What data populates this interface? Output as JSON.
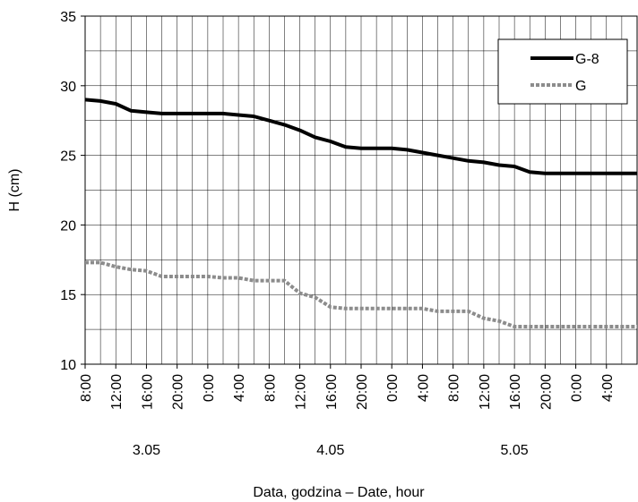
{
  "chart_data": {
    "type": "line",
    "title": "",
    "xlabel": "Data, godzina – Date, hour",
    "ylabel": "H (cm)",
    "ylim": [
      10,
      35
    ],
    "yticks": [
      10,
      15,
      20,
      25,
      30,
      35
    ],
    "xlim": [
      0,
      72
    ],
    "x_tick_labels": [
      "8:00",
      "12:00",
      "16:00",
      "20:00",
      "0:00",
      "4:00",
      "8:00",
      "12:00",
      "16:00",
      "20:00",
      "0:00",
      "4:00",
      "8:00",
      "12:00",
      "16:00",
      "20:00",
      "0:00",
      "4:00"
    ],
    "date_labels": [
      "3.05",
      "4.05",
      "5.05"
    ],
    "grid": true,
    "legend_position": "top-right",
    "series": [
      {
        "name": "G-8",
        "color": "#000000",
        "style": "solid",
        "x": [
          0,
          2,
          4,
          6,
          8,
          10,
          12,
          14,
          16,
          18,
          20,
          22,
          24,
          26,
          28,
          30,
          32,
          34,
          36,
          38,
          40,
          42,
          44,
          46,
          48,
          50,
          52,
          54,
          56,
          58,
          60,
          62,
          64,
          66,
          68,
          70,
          72
        ],
        "y": [
          29.0,
          28.9,
          28.7,
          28.2,
          28.1,
          28.0,
          28.0,
          28.0,
          28.0,
          28.0,
          27.9,
          27.8,
          27.5,
          27.2,
          26.8,
          26.3,
          26.0,
          25.6,
          25.5,
          25.5,
          25.5,
          25.4,
          25.2,
          25.0,
          24.8,
          24.6,
          24.5,
          24.3,
          24.2,
          23.8,
          23.7,
          23.7,
          23.7,
          23.7,
          23.7,
          23.7,
          23.7
        ]
      },
      {
        "name": "G",
        "color": "#8c8c8c",
        "style": "dotted",
        "x": [
          0,
          2,
          4,
          6,
          8,
          10,
          12,
          14,
          16,
          18,
          20,
          22,
          24,
          26,
          28,
          30,
          32,
          34,
          36,
          38,
          40,
          42,
          44,
          46,
          48,
          50,
          52,
          54,
          56,
          58,
          60,
          62,
          64,
          66,
          68,
          70,
          72
        ],
        "y": [
          17.3,
          17.3,
          17.0,
          16.8,
          16.7,
          16.3,
          16.3,
          16.3,
          16.3,
          16.2,
          16.2,
          16.0,
          16.0,
          16.0,
          15.1,
          14.8,
          14.1,
          14.0,
          14.0,
          14.0,
          14.0,
          14.0,
          14.0,
          13.8,
          13.8,
          13.8,
          13.3,
          13.1,
          12.7,
          12.7,
          12.7,
          12.7,
          12.7,
          12.7,
          12.7,
          12.7,
          12.7
        ]
      }
    ]
  }
}
